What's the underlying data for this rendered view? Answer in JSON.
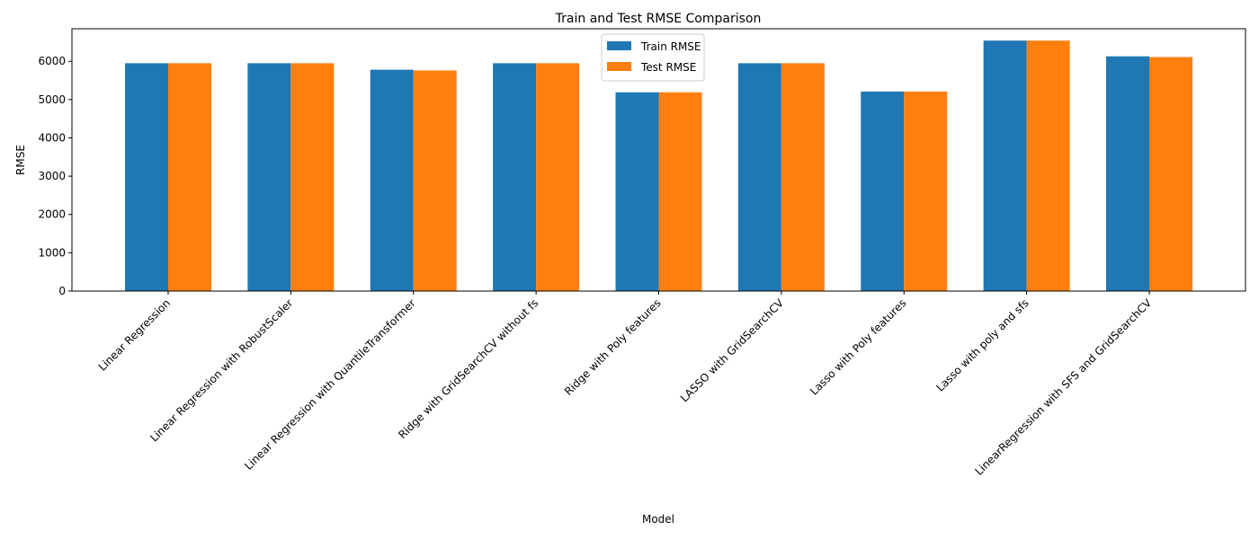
{
  "chart_data": {
    "type": "bar",
    "title": "Train and Test RMSE Comparison",
    "xlabel": "Model",
    "ylabel": "RMSE",
    "ylim": [
      0,
      6850
    ],
    "yticks": [
      0,
      1000,
      2000,
      3000,
      4000,
      5000,
      6000
    ],
    "grid": false,
    "legend_position": "upper-center",
    "categories": [
      "Linear Regression",
      "Linear Regression with RobustScaler",
      "Linear Regression with QuantileTransformer",
      "Ridge with GridSearchCV without fs",
      "Ridge with Poly features",
      "LASSO with GridSearchCV",
      "Lasso with Poly features",
      "Lasso with poly and sfs",
      "LinearRegression with SFS and GridSearchCV"
    ],
    "series": [
      {
        "name": "Train RMSE",
        "color": "#1f77b4",
        "values": [
          5950,
          5950,
          5780,
          5950,
          5190,
          5950,
          5210,
          6540,
          6130
        ]
      },
      {
        "name": "Test RMSE",
        "color": "#ff7f0e",
        "values": [
          5950,
          5950,
          5760,
          5950,
          5190,
          5950,
          5210,
          6540,
          6110
        ]
      }
    ]
  }
}
